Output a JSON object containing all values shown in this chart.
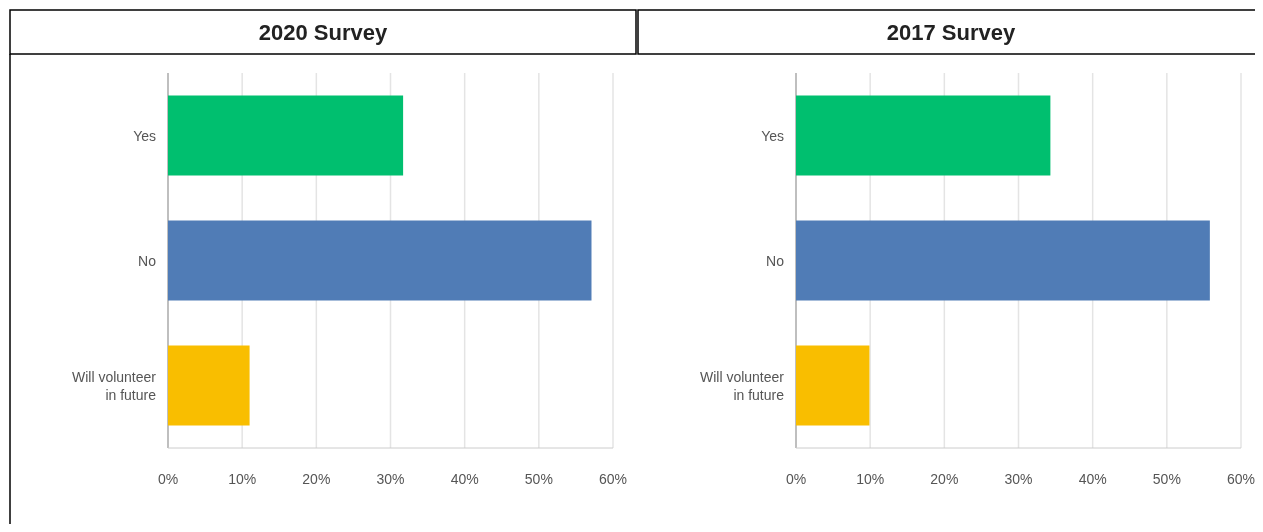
{
  "chart_data": [
    {
      "type": "bar",
      "title": "2020 Survey",
      "orientation": "horizontal",
      "categories": [
        "Yes",
        "No",
        "Will volunteer in future"
      ],
      "values": [
        31.7,
        57.1,
        11.0
      ],
      "colors": [
        "#00bf6f",
        "#507cb6",
        "#f9be00"
      ],
      "xlim": [
        0,
        60
      ],
      "xticks": [
        {
          "value": 0,
          "label": "0%"
        },
        {
          "value": 10,
          "label": "10%"
        },
        {
          "value": 20,
          "label": "20%"
        },
        {
          "value": 30,
          "label": "30%"
        },
        {
          "value": 40,
          "label": "40%"
        },
        {
          "value": 50,
          "label": "50%"
        },
        {
          "value": 60,
          "label": "60%"
        }
      ],
      "grid": "x"
    },
    {
      "type": "bar",
      "title": "2017 Survey",
      "orientation": "horizontal",
      "categories": [
        "Yes",
        "No",
        "Will volunteer in future"
      ],
      "values": [
        34.3,
        55.8,
        9.9
      ],
      "colors": [
        "#00bf6f",
        "#507cb6",
        "#f9be00"
      ],
      "xlim": [
        0,
        60
      ],
      "xticks": [
        {
          "value": 0,
          "label": "0%"
        },
        {
          "value": 10,
          "label": "10%"
        },
        {
          "value": 20,
          "label": "20%"
        },
        {
          "value": 30,
          "label": "30%"
        },
        {
          "value": 40,
          "label": "40%"
        },
        {
          "value": 50,
          "label": "50%"
        },
        {
          "value": 60,
          "label": "60%"
        }
      ],
      "grid": "x"
    }
  ]
}
